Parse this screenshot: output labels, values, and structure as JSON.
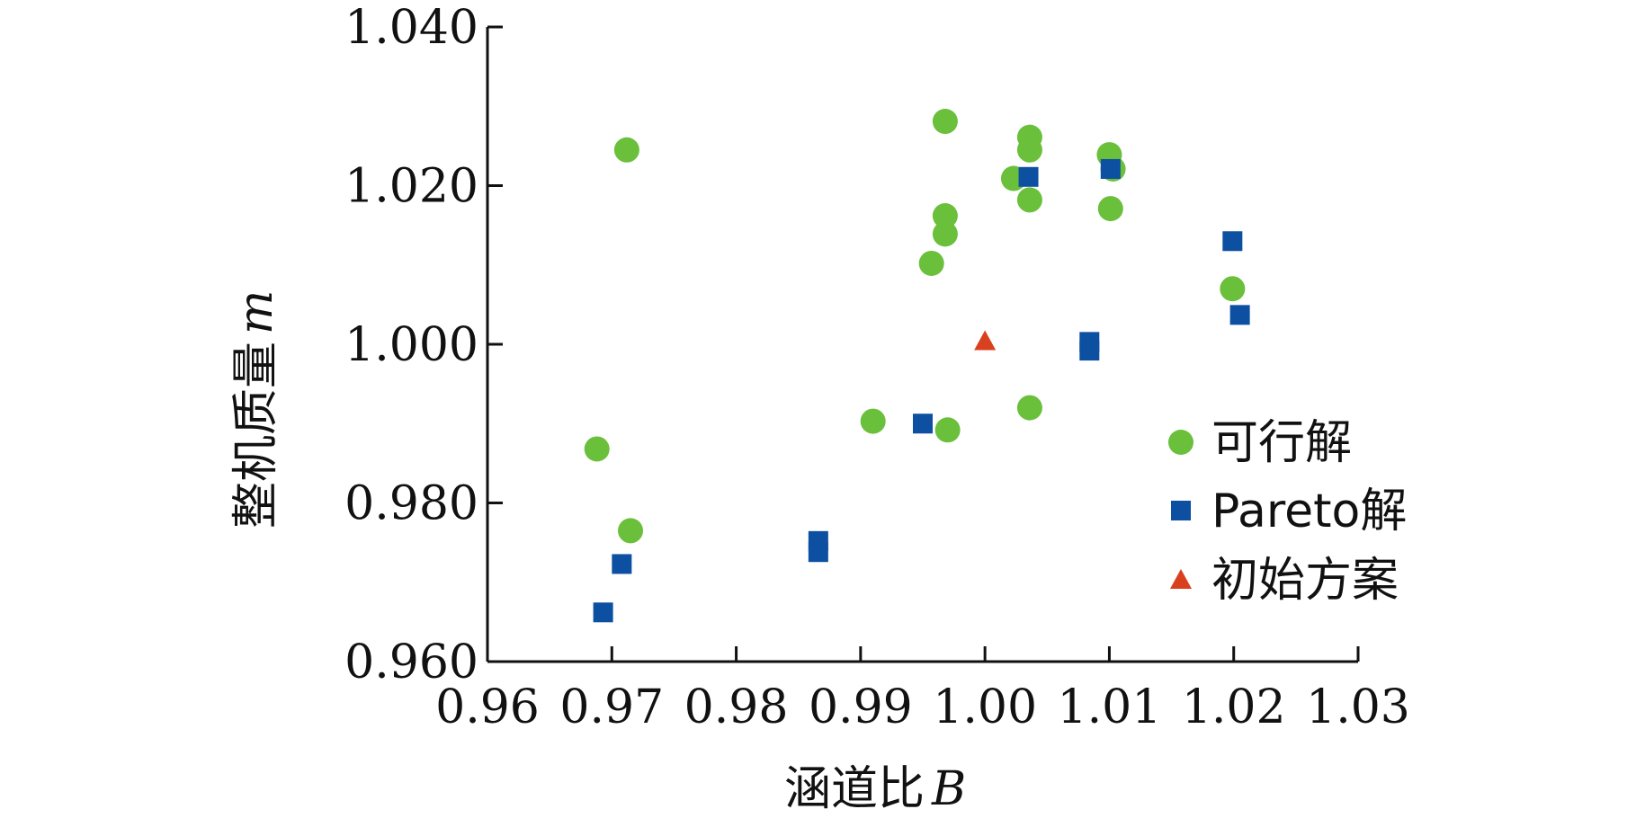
{
  "chart_data": {
    "type": "scatter",
    "xlabel": "涵道比",
    "xlabel_var": "B",
    "ylabel": "整机质量",
    "ylabel_var": "m",
    "xlim": [
      0.96,
      1.03
    ],
    "ylim": [
      0.96,
      1.04
    ],
    "xticks": [
      "0.96",
      "0.97",
      "0.98",
      "0.99",
      "1.00",
      "1.01",
      "1.02",
      "1.03"
    ],
    "xtick_values": [
      0.96,
      0.97,
      0.98,
      0.99,
      1.0,
      1.01,
      1.02,
      1.03
    ],
    "yticks": [
      "0.960",
      "0.980",
      "1.000",
      "1.020",
      "1.040"
    ],
    "ytick_values": [
      0.96,
      0.98,
      1.0,
      1.02,
      1.04
    ],
    "grid": false,
    "legend_position": "bottom-right",
    "series": [
      {
        "name": "可行解",
        "marker": "circle",
        "color": "#6abf3b",
        "points": [
          [
            0.9712,
            1.0245
          ],
          [
            0.9688,
            0.9868
          ],
          [
            0.9715,
            0.9765
          ],
          [
            0.991,
            0.9903
          ],
          [
            0.9957,
            1.0102
          ],
          [
            0.9968,
            1.0281
          ],
          [
            0.9968,
            1.0162
          ],
          [
            0.9968,
            1.0139
          ],
          [
            0.997,
            0.9892
          ],
          [
            1.0023,
            1.0209
          ],
          [
            1.0036,
            1.0261
          ],
          [
            1.0036,
            1.0245
          ],
          [
            1.0036,
            1.0182
          ],
          [
            1.0036,
            0.992
          ],
          [
            1.01,
            1.0239
          ],
          [
            1.0103,
            1.0221
          ],
          [
            1.0101,
            1.0171
          ],
          [
            1.0199,
            1.007
          ]
        ]
      },
      {
        "name": "Pareto解",
        "marker": "square",
        "color": "#0d4fa0",
        "points": [
          [
            0.9693,
            0.9662
          ],
          [
            0.9708,
            0.9723
          ],
          [
            0.9866,
            0.9752
          ],
          [
            0.9866,
            0.9738
          ],
          [
            0.995,
            0.99
          ],
          [
            1.0035,
            1.0211
          ],
          [
            1.0084,
            1.0003
          ],
          [
            1.0084,
            0.9992
          ],
          [
            1.0101,
            1.0221
          ],
          [
            1.0199,
            1.013
          ],
          [
            1.0205,
            1.0037
          ]
        ]
      },
      {
        "name": "初始方案",
        "marker": "triangle",
        "color": "#d9411e",
        "points": [
          [
            1.0,
            1.0004
          ]
        ]
      }
    ]
  }
}
